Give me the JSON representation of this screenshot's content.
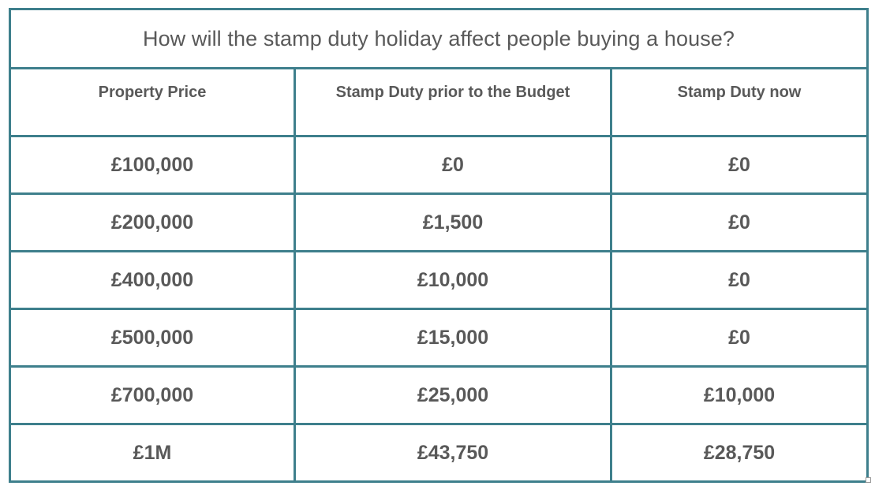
{
  "table": {
    "title": "How will the stamp duty holiday affect people buying a house?",
    "headers": [
      "Property Price",
      "Stamp Duty prior to the Budget",
      "Stamp Duty now"
    ],
    "rows": [
      [
        "£100,000",
        "£0",
        "£0"
      ],
      [
        "£200,000",
        "£1,500",
        "£0"
      ],
      [
        "£400,000",
        "£10,000",
        "£0"
      ],
      [
        "£500,000",
        "£15,000",
        "£0"
      ],
      [
        "£700,000",
        "£25,000",
        "£10,000"
      ],
      [
        "£1M",
        "£43,750",
        "£28,750"
      ]
    ]
  },
  "colors": {
    "border": "#3e7f8c",
    "text": "#595959",
    "background": "#ffffff"
  }
}
